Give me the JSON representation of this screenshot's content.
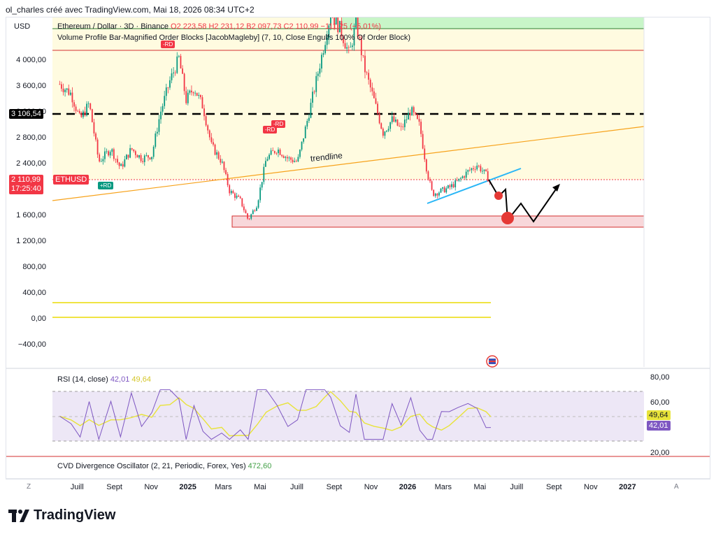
{
  "header": {
    "text": "ol_charles créé avec TradingView.com, Mai 18, 2026 08:34 UTC+2"
  },
  "toolbar": {
    "currency": "USD"
  },
  "legend": {
    "symbol": "Ethereum / Dollar · 3D · Binance",
    "o": "O2 223,58",
    "h": "H2 231,12",
    "b": "B2 097,73",
    "c": "C2 110,99",
    "chg": "−111,25 (−5,01%)",
    "indicator": "Volume Profile Bar-Magnified Order Blocks [JacobMagleby] (7, 10, Close Engulfs 100% Of Order Block)"
  },
  "chart_data": {
    "type": "candlestick",
    "symbol": "ETHUSD",
    "price_axis_labels": [
      "4 000,00",
      "3 600,00",
      "3 200,00",
      "2 800,00",
      "2 400,00",
      "1 600,00",
      "1 200,00",
      "800,00",
      "400,00",
      "0,00",
      "−400,00"
    ],
    "time_axis_labels": [
      "Juill",
      "Sept",
      "Nov",
      "2025",
      "Mars",
      "Mai",
      "Juill",
      "Sept",
      "Nov",
      "2026",
      "Mars",
      "Mai",
      "Juill",
      "Sept",
      "Nov",
      "2027"
    ],
    "bold_time_labels": [
      "2025",
      "2026",
      "2027"
    ],
    "current_price": {
      "label": "2 110,99",
      "countdown": "17:25:40",
      "symbol": "ETHUSD",
      "value": 2110.99
    },
    "dashed_level": {
      "label": "3 106,54",
      "value": 3106.54
    },
    "annotations": [
      "trendline"
    ],
    "order_block_badges": [
      "-RD",
      "-RD",
      "-RD",
      "+RD"
    ],
    "close_series": [
      {
        "d": "2024-06-01",
        "v": 3650
      },
      {
        "d": "2024-06-20",
        "v": 3500
      },
      {
        "d": "2024-07-05",
        "v": 3100
      },
      {
        "d": "2024-07-20",
        "v": 3350
      },
      {
        "d": "2024-08-05",
        "v": 2450
      },
      {
        "d": "2024-08-25",
        "v": 2650
      },
      {
        "d": "2024-09-10",
        "v": 2350
      },
      {
        "d": "2024-09-28",
        "v": 2650
      },
      {
        "d": "2024-10-15",
        "v": 2500
      },
      {
        "d": "2024-11-01",
        "v": 2550
      },
      {
        "d": "2024-11-15",
        "v": 3200
      },
      {
        "d": "2024-12-01",
        "v": 3700
      },
      {
        "d": "2024-12-16",
        "v": 4050
      },
      {
        "d": "2024-12-28",
        "v": 3400
      },
      {
        "d": "2025-01-10",
        "v": 3600
      },
      {
        "d": "2025-01-25",
        "v": 3300
      },
      {
        "d": "2025-02-08",
        "v": 2700
      },
      {
        "d": "2025-02-25",
        "v": 2450
      },
      {
        "d": "2025-03-10",
        "v": 2000
      },
      {
        "d": "2025-03-28",
        "v": 1850
      },
      {
        "d": "2025-04-10",
        "v": 1550
      },
      {
        "d": "2025-04-25",
        "v": 1800
      },
      {
        "d": "2025-05-10",
        "v": 2500
      },
      {
        "d": "2025-05-28",
        "v": 2650
      },
      {
        "d": "2025-06-15",
        "v": 2500
      },
      {
        "d": "2025-07-01",
        "v": 2450
      },
      {
        "d": "2025-07-15",
        "v": 3000
      },
      {
        "d": "2025-08-01",
        "v": 3700
      },
      {
        "d": "2025-08-15",
        "v": 4300
      },
      {
        "d": "2025-08-25",
        "v": 4750
      },
      {
        "d": "2025-09-10",
        "v": 4500
      },
      {
        "d": "2025-09-25",
        "v": 4100
      },
      {
        "d": "2025-10-06",
        "v": 4600
      },
      {
        "d": "2025-10-20",
        "v": 3900
      },
      {
        "d": "2025-11-05",
        "v": 3400
      },
      {
        "d": "2025-11-20",
        "v": 2900
      },
      {
        "d": "2025-12-05",
        "v": 3100
      },
      {
        "d": "2025-12-20",
        "v": 2950
      },
      {
        "d": "2026-01-05",
        "v": 3250
      },
      {
        "d": "2026-01-20",
        "v": 3000
      },
      {
        "d": "2026-02-01",
        "v": 2300
      },
      {
        "d": "2026-02-10",
        "v": 1950
      },
      {
        "d": "2026-02-25",
        "v": 2000
      },
      {
        "d": "2026-03-10",
        "v": 2050
      },
      {
        "d": "2026-03-25",
        "v": 2150
      },
      {
        "d": "2026-04-10",
        "v": 2300
      },
      {
        "d": "2026-04-25",
        "v": 2400
      },
      {
        "d": "2026-05-10",
        "v": 2250
      },
      {
        "d": "2026-05-18",
        "v": 2110.99
      }
    ]
  },
  "rsi": {
    "label": "RSI (14, close)",
    "value": "42,01",
    "ma_value": "49,64",
    "axis_labels": [
      "80,00",
      "60,00",
      "20,00"
    ],
    "tags": [
      "49,64",
      "42,01"
    ]
  },
  "cvd": {
    "label": "CVD Divergence Oscillator (2, 21, Periodic, Forex, Yes)",
    "value": "472,60"
  },
  "corner": {
    "left": "Z",
    "right": "A"
  },
  "brand": {
    "name": "TradingView"
  },
  "colors": {
    "up": "#089981",
    "down": "#f23645",
    "rsi": "#7e57c2",
    "rsi_ma": "#e8e33a",
    "trendline": "#f7a21b",
    "channel": "#29b6f6"
  }
}
